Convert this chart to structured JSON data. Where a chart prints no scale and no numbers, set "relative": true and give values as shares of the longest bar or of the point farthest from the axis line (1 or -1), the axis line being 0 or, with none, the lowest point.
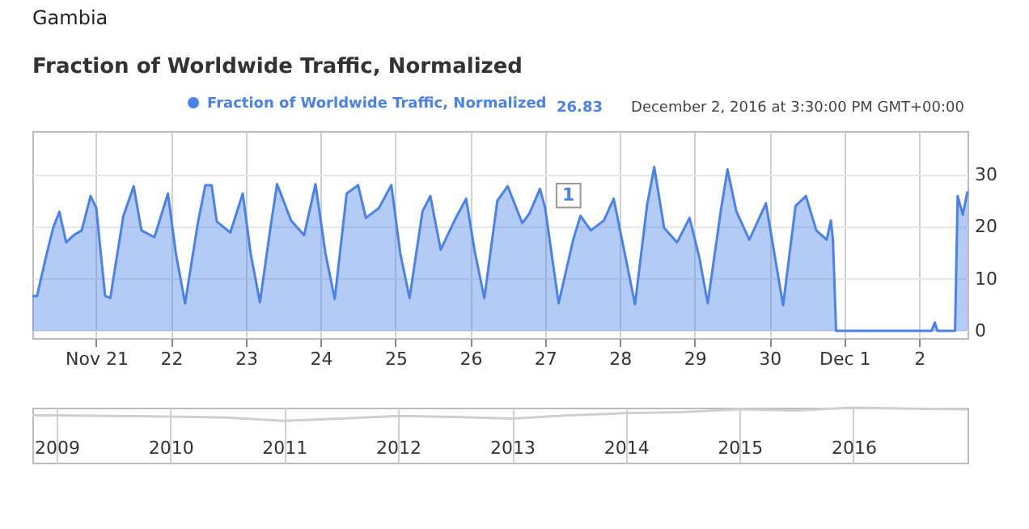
{
  "chart_data": [
    {
      "type": "area",
      "title": "Fraction of Worldwide Traffic, Normalized",
      "annotations": [
        "Gambia",
        "26.83",
        "December 2, 2016 at 3:30:00 PM GMT+00:00",
        {
          "text": "1",
          "x": "2016-11-27T07:30",
          "y": 26
        }
      ],
      "legend": "top",
      "grid": true,
      "xlim": [
        "2016-11-20T03:30",
        "2016-12-02T15:30"
      ],
      "xticks": [
        {
          "value": "2016-11-21",
          "label": "Nov 21"
        },
        {
          "value": "2016-11-22",
          "label": "22"
        },
        {
          "value": "2016-11-23",
          "label": "23"
        },
        {
          "value": "2016-11-24",
          "label": "24"
        },
        {
          "value": "2016-11-25",
          "label": "25"
        },
        {
          "value": "2016-11-26",
          "label": "26"
        },
        {
          "value": "2016-11-27",
          "label": "27"
        },
        {
          "value": "2016-11-28",
          "label": "28"
        },
        {
          "value": "2016-11-29",
          "label": "29"
        },
        {
          "value": "2016-11-30",
          "label": "30"
        },
        {
          "value": "2016-12-01",
          "label": "Dec 1"
        },
        {
          "value": "2016-12-02",
          "label": "2"
        }
      ],
      "ylim": [
        -1.4,
        38.4
      ],
      "yticks": [
        0,
        10,
        20,
        30
      ],
      "series": [
        {
          "name": "Fraction of Worldwide Traffic, Normalized",
          "color": "#4a82e8",
          "x": [
            "2016-11-20T03:30",
            "2016-11-20T05:00",
            "2016-11-20T07:40",
            "2016-11-20T10:10",
            "2016-11-20T12:10",
            "2016-11-20T14:20",
            "2016-11-20T16:50",
            "2016-11-20T19:20",
            "2016-11-20T22:10",
            "2016-11-21T00:00",
            "2016-11-21T02:50",
            "2016-11-21T04:30",
            "2016-11-21T08:40",
            "2016-11-21T12:00",
            "2016-11-21T14:30",
            "2016-11-21T18:40",
            "2016-11-21T23:00",
            "2016-11-22T01:30",
            "2016-11-22T04:30",
            "2016-11-22T08:40",
            "2016-11-22T11:00",
            "2016-11-22T13:00",
            "2016-11-22T14:40",
            "2016-11-22T19:00",
            "2016-11-22T23:00",
            "2016-11-23T01:30",
            "2016-11-23T04:30",
            "2016-11-23T08:00",
            "2016-11-23T10:00",
            "2016-11-23T14:30",
            "2016-11-23T18:40",
            "2016-11-23T22:20",
            "2016-11-24T01:30",
            "2016-11-24T04:30",
            "2016-11-24T08:20",
            "2016-11-24T12:00",
            "2016-11-24T14:30",
            "2016-11-24T18:40",
            "2016-11-24T22:40",
            "2016-11-25T01:30",
            "2016-11-25T04:30",
            "2016-11-25T08:40",
            "2016-11-25T11:10",
            "2016-11-25T14:30",
            "2016-11-25T19:20",
            "2016-11-25T22:40",
            "2016-11-26T01:30",
            "2016-11-26T04:30",
            "2016-11-26T08:40",
            "2016-11-26T12:00",
            "2016-11-26T16:40",
            "2016-11-26T19:00",
            "2016-11-26T22:20",
            "2016-11-27T00:00",
            "2016-11-27T04:20",
            "2016-11-27T09:00",
            "2016-11-27T11:20",
            "2016-11-27T14:40",
            "2016-11-27T18:50",
            "2016-11-27T22:00",
            "2016-11-28T01:30",
            "2016-11-28T04:50",
            "2016-11-28T08:40",
            "2016-11-28T11:00",
            "2016-11-28T14:10",
            "2016-11-28T18:20",
            "2016-11-28T22:20",
            "2016-11-29T01:30",
            "2016-11-29T04:10",
            "2016-11-29T08:20",
            "2016-11-29T10:30",
            "2016-11-29T13:20",
            "2016-11-29T17:30",
            "2016-11-29T22:50",
            "2016-11-30T01:30",
            "2016-11-30T04:20",
            "2016-11-30T08:20",
            "2016-11-30T11:40",
            "2016-11-30T15:00",
            "2016-11-30T18:20",
            "2016-11-30T19:40",
            "2016-11-30T20:20",
            "2016-11-30T21:20",
            "2016-12-01T12:00",
            "2016-12-02T04:00",
            "2016-12-02T05:00",
            "2016-12-02T05:50",
            "2016-12-02T11:30",
            "2016-12-02T12:20",
            "2016-12-02T14:00",
            "2016-12-02T15:30"
          ],
          "values": [
            6.7,
            6.7,
            13.7,
            19.8,
            22.9,
            17,
            18.4,
            19.3,
            25.9,
            23.6,
            6.7,
            6.3,
            22,
            27.8,
            19.3,
            18,
            26.4,
            15,
            5.3,
            21,
            28,
            28,
            21,
            18.9,
            26.4,
            15,
            5.5,
            20.3,
            28.2,
            21.2,
            18.4,
            28.2,
            15,
            6.1,
            26.4,
            28,
            21.7,
            23.6,
            28,
            15,
            6.3,
            23,
            25.9,
            15.6,
            21.7,
            25.4,
            15,
            6.3,
            25,
            27.8,
            20.7,
            22.6,
            27.3,
            23.6,
            5.3,
            17.5,
            22.1,
            19.3,
            21.2,
            25.4,
            15,
            5.1,
            24,
            31.5,
            19.8,
            17,
            21.7,
            14,
            5.3,
            23,
            31,
            23,
            17.5,
            24.5,
            15,
            4.9,
            24,
            25.9,
            19.3,
            17.5,
            21.2,
            17.5,
            0,
            0,
            0,
            1.6,
            0,
            0,
            25.9,
            22.3,
            26.83
          ]
        }
      ]
    },
    {
      "type": "line",
      "relative": true,
      "grid": "x",
      "legend": false,
      "xlim": [
        "2008-10-15",
        "2017-01-01"
      ],
      "xticks": [
        "2009",
        "2010",
        "2011",
        "2012",
        "2013",
        "2014",
        "2015",
        "2016"
      ],
      "series": [
        {
          "color": "#cfcfcf",
          "x": [
            "2008-10-15",
            "2009-01-01",
            "2009-07-01",
            "2010-01-01",
            "2010-07-01",
            "2011-01-01",
            "2011-07-01",
            "2012-01-01",
            "2012-07-01",
            "2013-01-01",
            "2013-07-01",
            "2014-01-01",
            "2014-07-01",
            "2015-01-01",
            "2015-07-01",
            "2016-01-01",
            "2016-07-01",
            "2017-01-01"
          ],
          "values": [
            0.86,
            0.86,
            0.85,
            0.84,
            0.82,
            0.76,
            0.8,
            0.85,
            0.83,
            0.8,
            0.86,
            0.9,
            0.92,
            0.97,
            0.95,
            1,
            0.98,
            0.97
          ]
        }
      ]
    }
  ]
}
